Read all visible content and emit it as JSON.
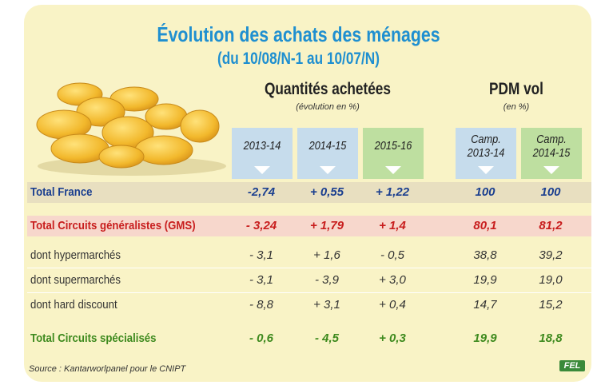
{
  "title": "Évolution des achats des ménages",
  "subtitle": "(du 10/08/N-1 au 10/07/N)",
  "groups": {
    "quantites": {
      "title": "Quantités achetées",
      "subtitle": "(évolution en %)"
    },
    "pdm": {
      "title": "PDM vol",
      "subtitle": "(en %)"
    }
  },
  "columns": [
    {
      "label": "2013-14"
    },
    {
      "label": "2014-15"
    },
    {
      "label": "2015-16"
    },
    {
      "label_line1": "Camp.",
      "label_line2": "2013-14"
    },
    {
      "label_line1": "Camp.",
      "label_line2": "2014-15"
    }
  ],
  "source": "Source : Kantarworlpanel pour le CNIPT",
  "logo_text": "FEL",
  "colors": {
    "title": "#1f8fd0",
    "france": "#1b3f8f",
    "gms": "#c81e1e",
    "specialises": "#3e8a1e",
    "background": "#f9f3c6",
    "col_blue": "#c6dcec",
    "col_green": "#bedfa0"
  },
  "chart_data": {
    "type": "table",
    "title": "Évolution des achats des ménages",
    "subtitle": "(du 10/08/N-1 au 10/07/N)",
    "rows": [
      {
        "label": "Total France",
        "values": [
          "-2,74",
          "+ 0,55",
          "+ 1,22",
          "100",
          "100"
        ]
      },
      {
        "label": "Total Circuits généralistes (GMS)",
        "values": [
          "- 3,24",
          "+ 1,79",
          "+ 1,4",
          "80,1",
          "81,2"
        ]
      },
      {
        "label": "dont hypermarchés",
        "values": [
          "- 3,1",
          "+ 1,6",
          "- 0,5",
          "38,8",
          "39,2"
        ]
      },
      {
        "label": "dont supermarchés",
        "values": [
          "- 3,1",
          "- 3,9",
          "+ 3,0",
          "19,9",
          "19,0"
        ]
      },
      {
        "label": "dont hard discount",
        "values": [
          "- 8,8",
          "+ 3,1",
          "+ 0,4",
          "14,7",
          "15,2"
        ]
      },
      {
        "label": "Total Circuits spécialisés",
        "values": [
          "- 0,6",
          "- 4,5",
          "+ 0,3",
          "19,9",
          "18,8"
        ]
      }
    ]
  }
}
